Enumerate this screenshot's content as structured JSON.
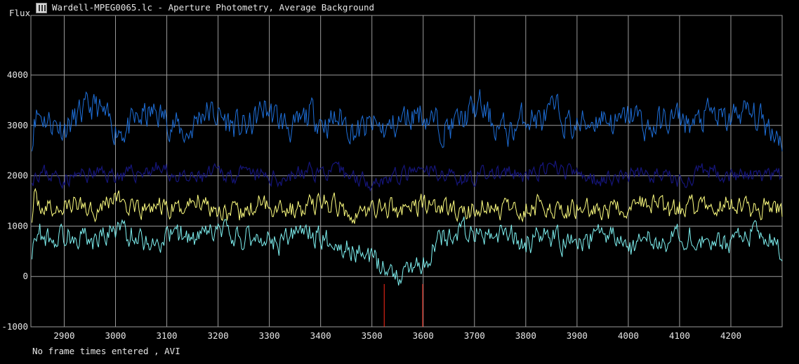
{
  "window": {
    "title": "Wardell-MPEG0065.lc - Aperture Photometry, Average Background",
    "status": "No frame times entered , AVI",
    "icon": "lightcurve-app-icon"
  },
  "chart_data": {
    "type": "line",
    "ylabel": "Flux",
    "xlim": [
      2835,
      4300
    ],
    "ylim": [
      -1000,
      4000
    ],
    "xticks": [
      2900,
      3000,
      3100,
      3200,
      3300,
      3400,
      3500,
      3600,
      3700,
      3800,
      3900,
      4000,
      4100,
      4200
    ],
    "yticks": [
      -1000,
      0,
      1000,
      2000,
      3000,
      4000
    ],
    "grid": true,
    "background": "#000000",
    "grid_color": "#9a9a9a",
    "markers": [
      3524,
      3599
    ],
    "marker_color": "#ff2a1a",
    "series": [
      {
        "color": "#1e6fd9",
        "mean": 3100,
        "amplitude": 480,
        "seed": 11,
        "x": [
          2840,
          2870,
          2900,
          2930,
          2960,
          2990,
          3020,
          3050,
          3080,
          3110,
          3140,
          3170,
          3200,
          3230,
          3260,
          3290,
          3320,
          3350,
          3380,
          3410,
          3440,
          3470,
          3500,
          3530,
          3560,
          3590,
          3620,
          3650,
          3680,
          3710,
          3740,
          3770,
          3800,
          3830,
          3860,
          3890,
          3920,
          3950,
          3980,
          4010,
          4040,
          4070,
          4100,
          4130,
          4160,
          4190,
          4220,
          4250,
          4280,
          4300
        ],
        "values": [
          3300,
          3100,
          2950,
          3200,
          3400,
          3000,
          2900,
          3150,
          3250,
          3050,
          2800,
          3300,
          3200,
          3000,
          2950,
          3350,
          3100,
          2900,
          3250,
          3050,
          3150,
          2850,
          3000,
          2900,
          3100,
          3300,
          3050,
          2950,
          3150,
          3400,
          3000,
          2850,
          3200,
          3100,
          3300,
          2950,
          3050,
          3200,
          3000,
          3250,
          2900,
          3100,
          3150,
          3000,
          3250,
          3050,
          3300,
          3150,
          2950,
          2750
        ]
      },
      {
        "color": "#15157a",
        "mean": 2000,
        "amplitude": 260,
        "seed": 23,
        "x": [
          2840,
          2900,
          2960,
          3020,
          3080,
          3140,
          3200,
          3260,
          3320,
          3380,
          3440,
          3500,
          3560,
          3620,
          3680,
          3740,
          3800,
          3860,
          3920,
          3980,
          4040,
          4100,
          4160,
          4220,
          4280,
          4300
        ],
        "values": [
          2100,
          1950,
          2050,
          2000,
          2150,
          1900,
          2050,
          2000,
          1950,
          2100,
          2050,
          1900,
          2000,
          2100,
          1950,
          2050,
          2000,
          2150,
          1950,
          2000,
          2050,
          1900,
          2100,
          2000,
          1950,
          2000
        ]
      },
      {
        "color": "#ffff80",
        "mean": 1350,
        "amplitude": 330,
        "seed": 37,
        "x": [
          2840,
          2880,
          2920,
          2960,
          3000,
          3040,
          3080,
          3120,
          3160,
          3200,
          3240,
          3280,
          3320,
          3360,
          3400,
          3440,
          3480,
          3520,
          3560,
          3600,
          3640,
          3680,
          3720,
          3760,
          3800,
          3840,
          3880,
          3920,
          3960,
          4000,
          4040,
          4080,
          4120,
          4160,
          4200,
          4240,
          4280,
          4300
        ],
        "values": [
          1500,
          1300,
          1450,
          1350,
          1600,
          1250,
          1400,
          1300,
          1550,
          1350,
          1200,
          1450,
          1400,
          1300,
          1500,
          1350,
          1250,
          1400,
          1300,
          1450,
          1350,
          1250,
          1400,
          1300,
          1350,
          1450,
          1300,
          1400,
          1250,
          1350,
          1500,
          1300,
          1400,
          1350,
          1450,
          1300,
          1400,
          1250
        ]
      },
      {
        "color": "#7ff2f2",
        "mean": 850,
        "amplitude": 380,
        "seed": 53,
        "x": [
          2840,
          2880,
          2920,
          2960,
          3000,
          3040,
          3080,
          3120,
          3160,
          3200,
          3240,
          3280,
          3320,
          3360,
          3400,
          3440,
          3480,
          3520,
          3560,
          3600,
          3640,
          3680,
          3720,
          3760,
          3800,
          3840,
          3880,
          3920,
          3960,
          4000,
          4040,
          4080,
          4120,
          4160,
          4200,
          4240,
          4280,
          4300
        ],
        "values": [
          900,
          750,
          850,
          700,
          950,
          800,
          650,
          850,
          700,
          900,
          750,
          800,
          650,
          900,
          800,
          600,
          450,
          200,
          50,
          300,
          800,
          900,
          750,
          850,
          700,
          800,
          650,
          750,
          850,
          500,
          800,
          700,
          850,
          750,
          650,
          850,
          800,
          550
        ]
      }
    ]
  }
}
